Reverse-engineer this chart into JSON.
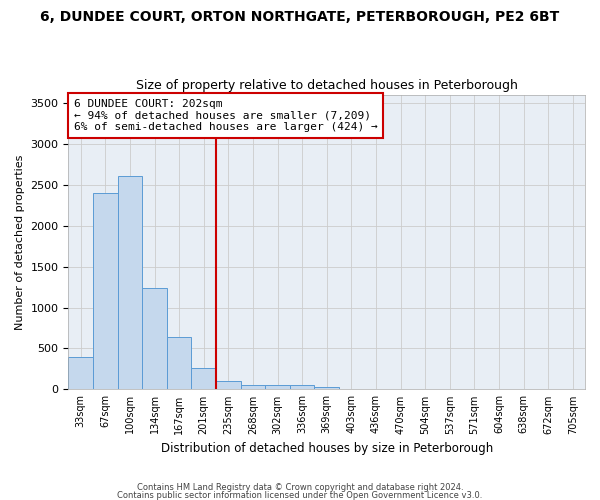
{
  "title": "6, DUNDEE COURT, ORTON NORTHGATE, PETERBOROUGH, PE2 6BT",
  "subtitle": "Size of property relative to detached houses in Peterborough",
  "xlabel": "Distribution of detached houses by size in Peterborough",
  "ylabel": "Number of detached properties",
  "categories": [
    "33sqm",
    "67sqm",
    "100sqm",
    "134sqm",
    "167sqm",
    "201sqm",
    "235sqm",
    "268sqm",
    "302sqm",
    "336sqm",
    "369sqm",
    "403sqm",
    "436sqm",
    "470sqm",
    "504sqm",
    "537sqm",
    "571sqm",
    "604sqm",
    "638sqm",
    "672sqm",
    "705sqm"
  ],
  "values": [
    390,
    2400,
    2600,
    1240,
    640,
    260,
    100,
    60,
    55,
    50,
    35,
    0,
    0,
    0,
    0,
    0,
    0,
    0,
    0,
    0,
    0
  ],
  "bar_color": "#c5d8ed",
  "bar_edge_color": "#5b9bd5",
  "vline_x": 5.5,
  "vline_color": "#cc0000",
  "annotation_text": "6 DUNDEE COURT: 202sqm\n← 94% of detached houses are smaller (7,209)\n6% of semi-detached houses are larger (424) →",
  "annotation_box_color": "#cc0000",
  "ylim": [
    0,
    3600
  ],
  "yticks": [
    0,
    500,
    1000,
    1500,
    2000,
    2500,
    3000,
    3500
  ],
  "grid_color": "#cccccc",
  "bg_color": "#e8eef5",
  "footer1": "Contains HM Land Registry data © Crown copyright and database right 2024.",
  "footer2": "Contains public sector information licensed under the Open Government Licence v3.0.",
  "title_fontsize": 10,
  "subtitle_fontsize": 9
}
